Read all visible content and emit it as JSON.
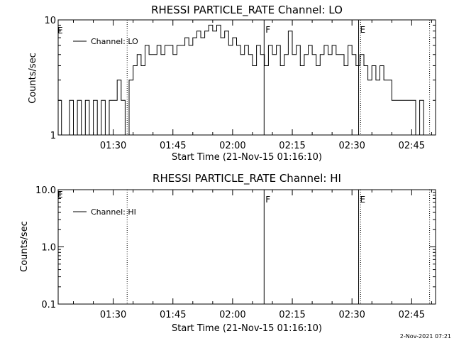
{
  "footer": {
    "timestamp": "2-Nov-2021 07:21"
  },
  "chart_data": [
    {
      "type": "line",
      "title": "RHESSI PARTICLE_RATE Channel: LO",
      "xlabel": "Start Time (21-Nov-15 01:16:10)",
      "ylabel": "Counts/sec",
      "yscale": "log",
      "ylim": [
        1,
        10
      ],
      "yticks": [
        "1",
        "10"
      ],
      "xticks": [
        "01:30",
        "01:45",
        "02:00",
        "02:15",
        "02:30",
        "02:45"
      ],
      "legend": {
        "label": "Channel: LO",
        "placement": "top-left"
      },
      "markers": [
        {
          "time": "01:33:30",
          "style": "dotted",
          "label": ""
        },
        {
          "time": "02:07:55",
          "style": "solid",
          "label": "F"
        },
        {
          "time": "02:31:40",
          "style": "solid",
          "label": "E"
        },
        {
          "time": "02:32:10",
          "style": "dotted",
          "label": ""
        },
        {
          "time": "02:49:30",
          "style": "dotted",
          "label": ""
        }
      ],
      "corner_label": "E",
      "series": [
        {
          "name": "Channel: LO",
          "x": [
            "01:16:10",
            "01:17:00",
            "01:18:00",
            "01:19:00",
            "01:20:00",
            "01:21:00",
            "01:22:00",
            "01:23:00",
            "01:24:00",
            "01:25:00",
            "01:26:00",
            "01:27:00",
            "01:28:00",
            "01:29:00",
            "01:30:00",
            "01:31:00",
            "01:32:00",
            "01:33:00",
            "01:34:00",
            "01:35:00",
            "01:36:00",
            "01:37:00",
            "01:38:00",
            "01:39:00",
            "01:40:00",
            "01:41:00",
            "01:42:00",
            "01:43:00",
            "01:44:00",
            "01:45:00",
            "01:46:00",
            "01:47:00",
            "01:48:00",
            "01:49:00",
            "01:50:00",
            "01:51:00",
            "01:52:00",
            "01:53:00",
            "01:54:00",
            "01:55:00",
            "01:56:00",
            "01:57:00",
            "01:58:00",
            "01:59:00",
            "02:00:00",
            "02:01:00",
            "02:02:00",
            "02:03:00",
            "02:04:00",
            "02:05:00",
            "02:06:00",
            "02:07:00",
            "02:08:00",
            "02:09:00",
            "02:10:00",
            "02:11:00",
            "02:12:00",
            "02:13:00",
            "02:14:00",
            "02:15:00",
            "02:16:00",
            "02:17:00",
            "02:18:00",
            "02:19:00",
            "02:20:00",
            "02:21:00",
            "02:22:00",
            "02:23:00",
            "02:24:00",
            "02:25:00",
            "02:26:00",
            "02:27:00",
            "02:28:00",
            "02:29:00",
            "02:30:00",
            "02:31:00",
            "02:32:00",
            "02:33:00",
            "02:34:00",
            "02:35:00",
            "02:36:00",
            "02:37:00",
            "02:38:00",
            "02:39:00",
            "02:40:00",
            "02:41:00",
            "02:42:00",
            "02:43:00",
            "02:44:00",
            "02:45:00",
            "02:46:00",
            "02:47:00",
            "02:48:00",
            "02:49:00",
            "02:50:00"
          ],
          "values": [
            2,
            1,
            1,
            2,
            1,
            2,
            1,
            2,
            1,
            2,
            1,
            2,
            1,
            2,
            2,
            3,
            2,
            1,
            3,
            4,
            5,
            4,
            6,
            5,
            5,
            6,
            5,
            6,
            6,
            5,
            6,
            6,
            7,
            6,
            7,
            8,
            7,
            8,
            9,
            8,
            9,
            7,
            8,
            6,
            7,
            6,
            5,
            6,
            5,
            4,
            6,
            5,
            4,
            6,
            5,
            6,
            4,
            5,
            8,
            5,
            6,
            4,
            5,
            6,
            5,
            4,
            5,
            6,
            5,
            6,
            5,
            5,
            4,
            6,
            5,
            4,
            5,
            4,
            3,
            4,
            3,
            4,
            3,
            3,
            2,
            2,
            2,
            2,
            2,
            2,
            1,
            2,
            1,
            1,
            1
          ]
        }
      ]
    },
    {
      "type": "line",
      "title": "RHESSI PARTICLE_RATE Channel: HI",
      "xlabel": "Start Time (21-Nov-15 01:16:10)",
      "ylabel": "Counts/sec",
      "yscale": "log",
      "ylim": [
        0.1,
        10
      ],
      "yticks": [
        "0.1",
        "1.0",
        "10.0"
      ],
      "xticks": [
        "01:30",
        "01:45",
        "02:00",
        "02:15",
        "02:30",
        "02:45"
      ],
      "legend": {
        "label": "Channel: HI",
        "placement": "top-left"
      },
      "markers": [
        {
          "time": "01:33:30",
          "style": "dotted",
          "label": ""
        },
        {
          "time": "02:07:55",
          "style": "solid",
          "label": "F"
        },
        {
          "time": "02:31:40",
          "style": "solid",
          "label": "E"
        },
        {
          "time": "02:32:10",
          "style": "dotted",
          "label": ""
        },
        {
          "time": "02:49:30",
          "style": "dotted",
          "label": ""
        }
      ],
      "corner_label": "E",
      "series": [
        {
          "name": "Channel: HI",
          "x": [],
          "values": []
        }
      ]
    }
  ]
}
